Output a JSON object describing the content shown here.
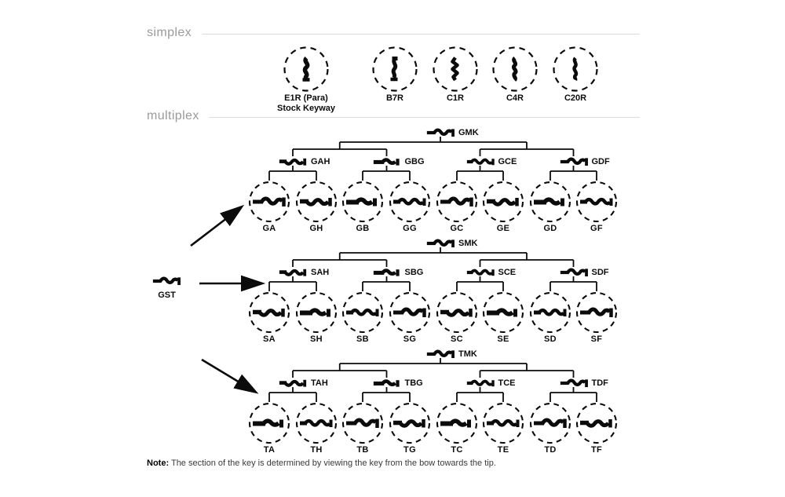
{
  "sections": {
    "simplex": {
      "label": "simplex"
    },
    "multiplex": {
      "label": "multiplex"
    }
  },
  "simplex_keyways": [
    {
      "label": "E1R (Para)",
      "sublabel": "Stock Keyway",
      "icon": "keyway-cross-section-icon"
    },
    {
      "label": "B7R",
      "icon": "keyway-cross-section-icon"
    },
    {
      "label": "C1R",
      "icon": "keyway-cross-section-icon"
    },
    {
      "label": "C4R",
      "icon": "keyway-cross-section-icon"
    },
    {
      "label": "C20R",
      "icon": "keyway-cross-section-icon"
    }
  ],
  "source_key": {
    "label": "GST",
    "icon": "key-blade-profile-icon"
  },
  "multiplex_trees": [
    {
      "root": "GMK",
      "groups": [
        {
          "label": "GAH",
          "children": [
            "GA",
            "GH"
          ]
        },
        {
          "label": "GBG",
          "children": [
            "GB",
            "GG"
          ]
        },
        {
          "label": "GCE",
          "children": [
            "GC",
            "GE"
          ]
        },
        {
          "label": "GDF",
          "children": [
            "GD",
            "GF"
          ]
        }
      ]
    },
    {
      "root": "SMK",
      "groups": [
        {
          "label": "SAH",
          "children": [
            "SA",
            "SH"
          ]
        },
        {
          "label": "SBG",
          "children": [
            "SB",
            "SG"
          ]
        },
        {
          "label": "SCE",
          "children": [
            "SC",
            "SE"
          ]
        },
        {
          "label": "SDF",
          "children": [
            "SD",
            "SF"
          ]
        }
      ]
    },
    {
      "root": "TMK",
      "groups": [
        {
          "label": "TAH",
          "children": [
            "TA",
            "TH"
          ]
        },
        {
          "label": "TBG",
          "children": [
            "TB",
            "TG"
          ]
        },
        {
          "label": "TCE",
          "children": [
            "TC",
            "TE"
          ]
        },
        {
          "label": "TDF",
          "children": [
            "TD",
            "TF"
          ]
        }
      ]
    }
  ],
  "note": {
    "prefix": "Note:",
    "text": "The section of the key is determined by viewing the key from the bow towards the tip."
  },
  "icons": {
    "keyway_circle": "keyway-circle",
    "keyway_section": "keyway-cross-section-icon",
    "key_profile": "key-blade-profile-icon",
    "arrow": "arrow-icon"
  },
  "colors": {
    "ink": "#0b0b0b",
    "heading": "#9b9b9b",
    "rule": "#dcdcdc",
    "note": "#3a3a3a"
  }
}
